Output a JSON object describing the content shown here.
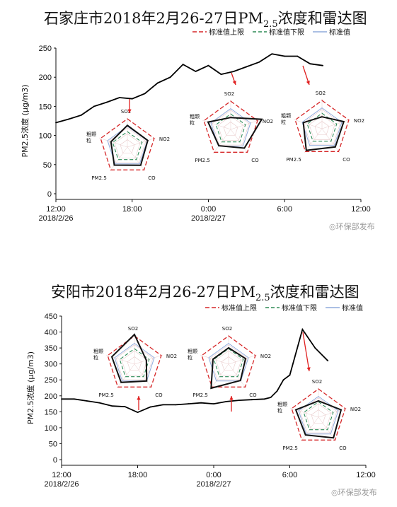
{
  "chart_data": [
    {
      "type": "line",
      "title": "石家庄市2018年2月26-27日PM2.5浓度和雷达图",
      "title_parts": {
        "pre": "石家庄市2018年2月26-27日PM",
        "sub": "2.5",
        "post": "浓度和雷达图"
      },
      "ylabel": "PM2.5浓度 (μg/m3)",
      "ylim": [
        0,
        250
      ],
      "y_ticks": [
        "0",
        "50",
        "100",
        "150",
        "200",
        "250"
      ],
      "x_ticks": [
        "12:00",
        "18:00",
        "0:00",
        "6:00",
        "12:00"
      ],
      "x_dates": [
        "2018/2/26",
        "2018/2/27"
      ],
      "legend": [
        "标准值上限",
        "标准值下限",
        "标准值"
      ],
      "series": [
        {
          "x": [
            12,
            13,
            14,
            15,
            16,
            17,
            18,
            19,
            20,
            21,
            22,
            23,
            24,
            25,
            26,
            27,
            28,
            29,
            30,
            31,
            32,
            33
          ],
          "values": [
            122,
            128,
            135,
            150,
            157,
            165,
            163,
            172,
            190,
            200,
            222,
            210,
            220,
            205,
            210,
            218,
            226,
            240,
            236,
            236,
            223,
            220
          ]
        }
      ],
      "radar_labels": [
        "SO2",
        "NO2",
        "CO",
        "PM2.5",
        "粗颗粒"
      ],
      "radars": [
        {
          "values": [
            0.73,
            0.72,
            0.76,
            0.75,
            0.58
          ]
        },
        {
          "values": [
            0.4,
            1.1,
            0.78,
            0.68,
            0.8
          ]
        },
        {
          "values": [
            0.4,
            0.77,
            0.76,
            0.9,
            0.66
          ]
        }
      ]
    },
    {
      "type": "line",
      "title": "安阳市2018年2月26-27日PM2.5浓度和雷达图",
      "title_parts": {
        "pre": "安阳市2018年2月26-27日PM",
        "sub": "2.5",
        "post": "浓度和雷达图"
      },
      "ylabel": "PM2.5浓度 (μg/m3)",
      "ylim": [
        0,
        450
      ],
      "y_ticks": [
        "0",
        "50",
        "100",
        "150",
        "200",
        "250",
        "300",
        "350",
        "400",
        "450"
      ],
      "x_ticks": [
        "12:00",
        "18:00",
        "0:00",
        "6:00",
        "12:00"
      ],
      "x_dates": [
        "2018/2/26",
        "2018/2/27"
      ],
      "legend": [
        "标准值上限",
        "标准值下限",
        "标准值"
      ],
      "series": [
        {
          "x": [
            12,
            13,
            14,
            15,
            16,
            17,
            18,
            19,
            20,
            21,
            22,
            23,
            24,
            25,
            26,
            27,
            28,
            28.5,
            29,
            29.5,
            30,
            31,
            32,
            33
          ],
          "values": [
            190,
            190,
            184,
            178,
            168,
            166,
            148,
            165,
            172,
            172,
            175,
            178,
            175,
            182,
            186,
            188,
            190,
            195,
            215,
            250,
            265,
            408,
            350,
            310
          ]
        }
      ],
      "radar_labels": [
        "SO2",
        "NO2",
        "CO",
        "PM2.5",
        "粗颗粒"
      ],
      "radars": [
        {
          "values": [
            1.0,
            0.42,
            0.7,
            0.76,
            0.8
          ]
        },
        {
          "values": [
            0.55,
            0.6,
            0.68,
            1.0,
            0.55
          ]
        },
        {
          "values": [
            0.55,
            0.8,
            0.86,
            0.74,
            0.8
          ]
        }
      ]
    }
  ],
  "watermark": "环保部发布"
}
